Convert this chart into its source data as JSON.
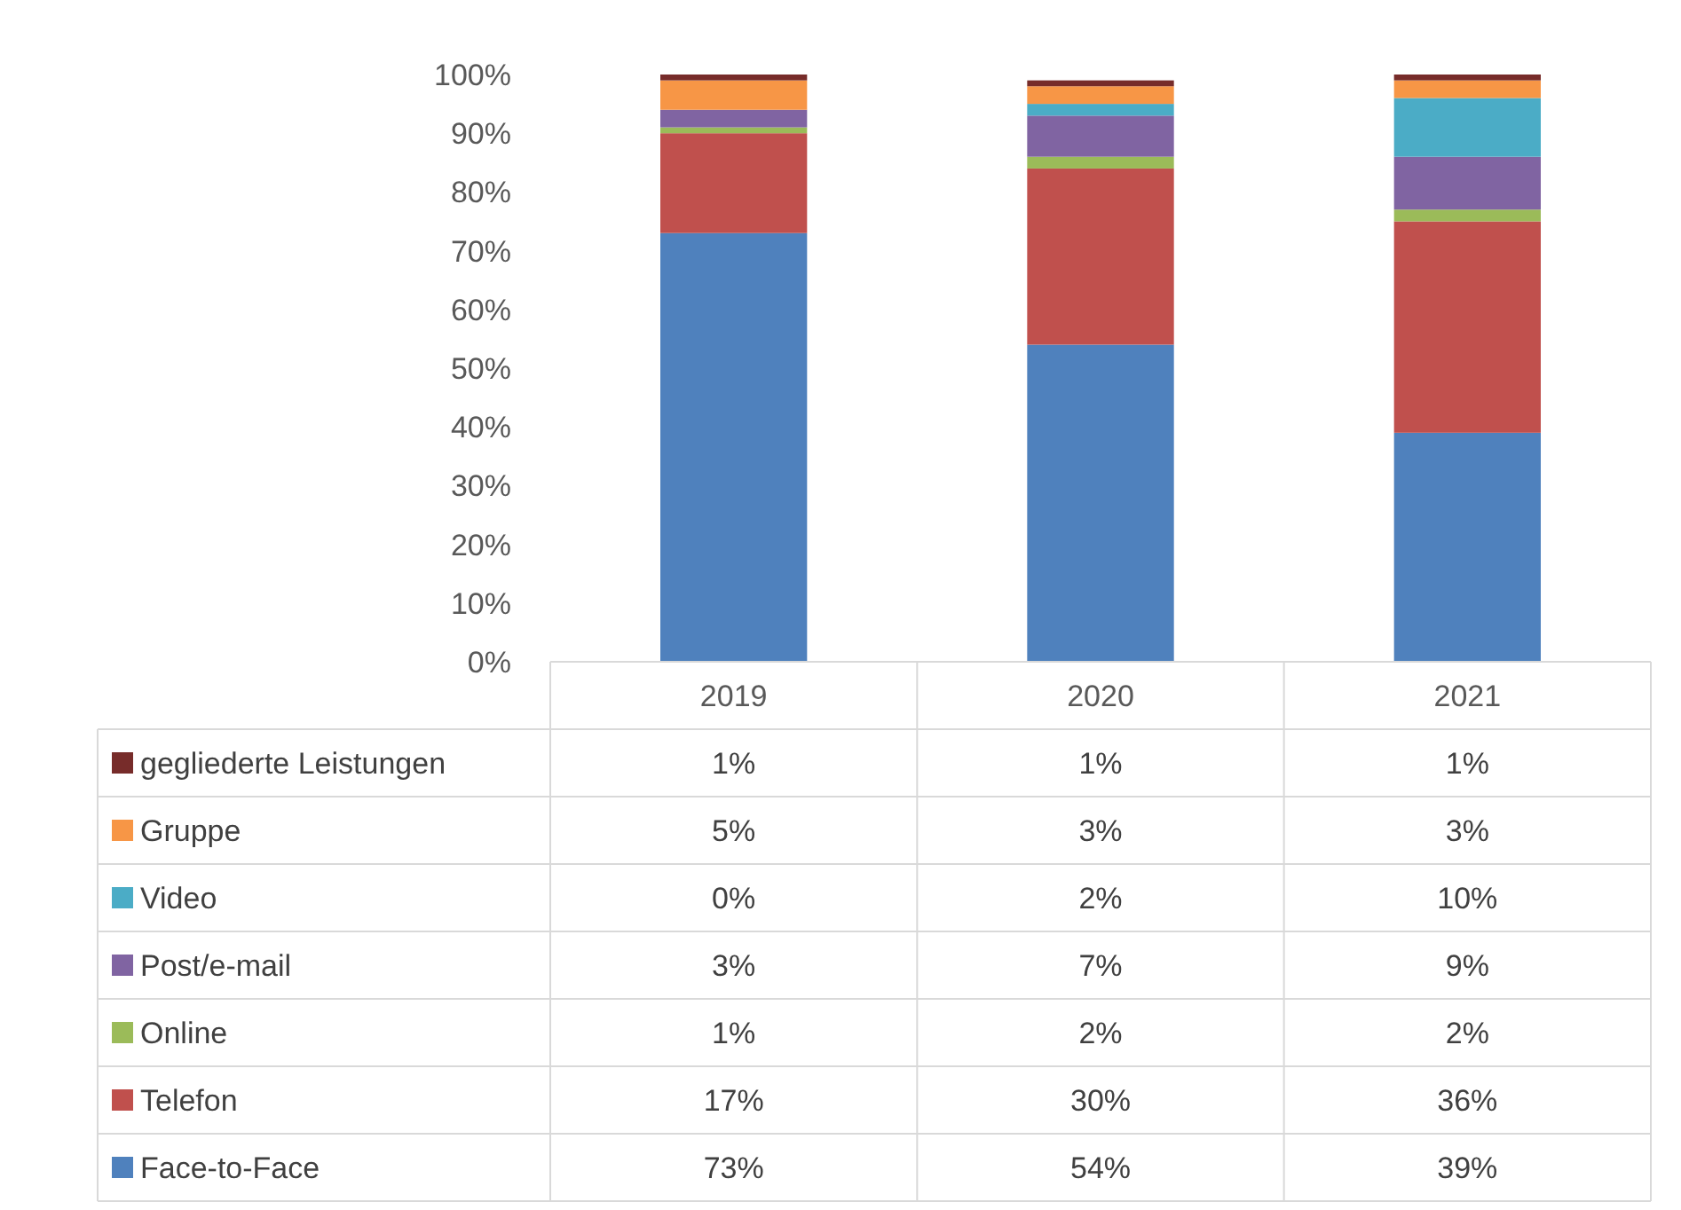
{
  "chart_data": {
    "type": "bar",
    "stacked": true,
    "categories": [
      "2019",
      "2020",
      "2021"
    ],
    "ylim": [
      0,
      100
    ],
    "yticks": [
      {
        "value": 0,
        "label": "0%"
      },
      {
        "value": 10,
        "label": "10%"
      },
      {
        "value": 20,
        "label": "20%"
      },
      {
        "value": 30,
        "label": "30%"
      },
      {
        "value": 40,
        "label": "40%"
      },
      {
        "value": 50,
        "label": "50%"
      },
      {
        "value": 60,
        "label": "60%"
      },
      {
        "value": 70,
        "label": "70%"
      },
      {
        "value": 80,
        "label": "80%"
      },
      {
        "value": 90,
        "label": "90%"
      },
      {
        "value": 100,
        "label": "100%"
      }
    ],
    "legend": "bottom",
    "grid": false,
    "series": [
      {
        "name": "Face-to-Face",
        "color": "#4f81bd",
        "values": [
          73,
          54,
          39
        ],
        "value_labels": [
          "73%",
          "54%",
          "39%"
        ]
      },
      {
        "name": "Telefon",
        "color": "#c0504d",
        "values": [
          17,
          30,
          36
        ],
        "value_labels": [
          "17%",
          "30%",
          "36%"
        ]
      },
      {
        "name": "Online",
        "color": "#9bbb59",
        "values": [
          1,
          2,
          2
        ],
        "value_labels": [
          "1%",
          "2%",
          "2%"
        ]
      },
      {
        "name": "Post/e-mail",
        "color": "#8064a2",
        "values": [
          3,
          7,
          9
        ],
        "value_labels": [
          "3%",
          "7%",
          "9%"
        ]
      },
      {
        "name": "Video",
        "color": "#4bacc6",
        "values": [
          0,
          2,
          10
        ],
        "value_labels": [
          "0%",
          "2%",
          "10%"
        ]
      },
      {
        "name": "Gruppe",
        "color": "#f79646",
        "values": [
          5,
          3,
          3
        ],
        "value_labels": [
          "5%",
          "3%",
          "3%"
        ]
      },
      {
        "name": "gegliederte Leistungen",
        "color": "#772c2a",
        "values": [
          1,
          1,
          1
        ],
        "value_labels": [
          "1%",
          "1%",
          "1%"
        ]
      }
    ]
  }
}
